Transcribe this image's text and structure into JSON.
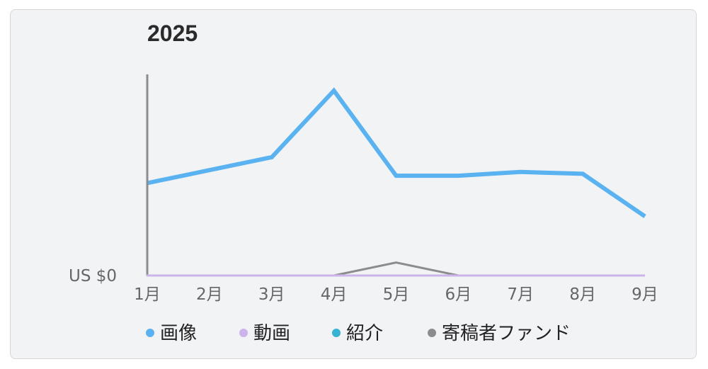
{
  "chart_data": {
    "type": "line",
    "title": "2025",
    "categories": [
      "1月",
      "2月",
      "3月",
      "4月",
      "5月",
      "6月",
      "7月",
      "8月",
      "9月"
    ],
    "y_tick_label": "US $0",
    "ylim": [
      0,
      100
    ],
    "series": [
      {
        "name": "画像",
        "color": "#5ab3f0",
        "values": [
          50,
          57,
          64,
          100,
          54,
          54,
          56,
          55,
          32
        ]
      },
      {
        "name": "動画",
        "color": "#cbb4ec",
        "values": [
          0,
          0,
          0,
          0,
          0,
          0,
          0,
          0,
          0
        ]
      },
      {
        "name": "紹介",
        "color": "#36b3d3",
        "values": [
          0,
          0,
          0,
          0,
          0,
          0,
          0,
          0,
          0
        ]
      },
      {
        "name": "寄稿者ファンド",
        "color": "#8c8c8c",
        "values": [
          0,
          0,
          0,
          0,
          7,
          0,
          0,
          0,
          0
        ]
      }
    ],
    "legend_position": "bottom",
    "grid": false
  }
}
